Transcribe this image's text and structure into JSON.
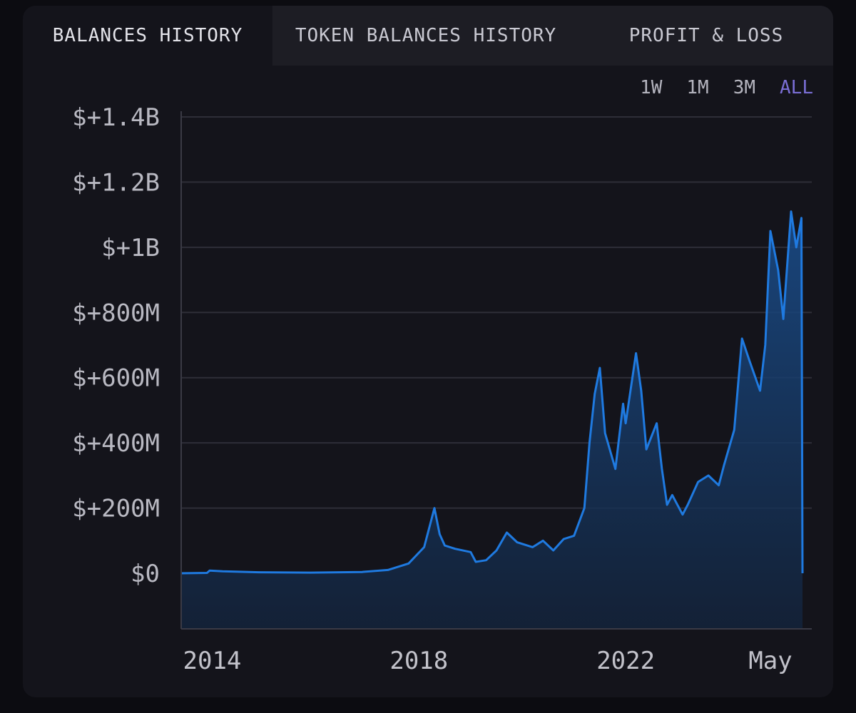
{
  "tabs": [
    {
      "label": "BALANCES HISTORY",
      "active": true
    },
    {
      "label": "TOKEN BALANCES HISTORY",
      "active": false
    },
    {
      "label": "PROFIT & LOSS",
      "active": false
    }
  ],
  "ranges": [
    {
      "label": "1W",
      "active": false
    },
    {
      "label": "1M",
      "active": false
    },
    {
      "label": "3M",
      "active": false
    },
    {
      "label": "ALL",
      "active": true
    }
  ],
  "colors": {
    "background": "#0c0c11",
    "panel": "#14141b",
    "line": "#1f7ae0",
    "active_range": "#7b6fd6"
  },
  "chart_data": {
    "type": "area",
    "title": "",
    "xlabel": "",
    "ylabel": "",
    "ylim": [
      -170000000,
      1400000000
    ],
    "y_ticks": [
      {
        "value": 1400000000,
        "label": "$+1.4B"
      },
      {
        "value": 1200000000,
        "label": "$+1.2B"
      },
      {
        "value": 1000000000,
        "label": "$+1B"
      },
      {
        "value": 800000000,
        "label": "$+800M"
      },
      {
        "value": 600000000,
        "label": "$+600M"
      },
      {
        "value": 400000000,
        "label": "$+400M"
      },
      {
        "value": 200000000,
        "label": "$+200M"
      },
      {
        "value": 0,
        "label": "$0"
      }
    ],
    "x_ticks": [
      {
        "x": 2013.6,
        "label": "2014"
      },
      {
        "x": 2017.6,
        "label": "2018"
      },
      {
        "x": 2021.6,
        "label": "2022"
      },
      {
        "x": 2024.4,
        "label": "May"
      }
    ],
    "grid": true,
    "xlim": [
      2013,
      2025.2
    ],
    "series": [
      {
        "values": [
          [
            2013.0,
            0
          ],
          [
            2013.5,
            1000000
          ],
          [
            2013.55,
            8000000
          ],
          [
            2013.8,
            6000000
          ],
          [
            2014.5,
            3000000
          ],
          [
            2015.5,
            2000000
          ],
          [
            2016.5,
            4000000
          ],
          [
            2017.0,
            10000000
          ],
          [
            2017.4,
            30000000
          ],
          [
            2017.7,
            80000000
          ],
          [
            2017.9,
            200000000
          ],
          [
            2018.0,
            120000000
          ],
          [
            2018.1,
            85000000
          ],
          [
            2018.3,
            75000000
          ],
          [
            2018.6,
            65000000
          ],
          [
            2018.7,
            35000000
          ],
          [
            2018.9,
            40000000
          ],
          [
            2019.1,
            70000000
          ],
          [
            2019.3,
            125000000
          ],
          [
            2019.5,
            95000000
          ],
          [
            2019.8,
            80000000
          ],
          [
            2020.0,
            100000000
          ],
          [
            2020.2,
            70000000
          ],
          [
            2020.4,
            105000000
          ],
          [
            2020.6,
            115000000
          ],
          [
            2020.8,
            200000000
          ],
          [
            2020.9,
            400000000
          ],
          [
            2021.0,
            550000000
          ],
          [
            2021.1,
            630000000
          ],
          [
            2021.2,
            430000000
          ],
          [
            2021.4,
            320000000
          ],
          [
            2021.55,
            520000000
          ],
          [
            2021.6,
            460000000
          ],
          [
            2021.8,
            675000000
          ],
          [
            2021.9,
            560000000
          ],
          [
            2022.0,
            380000000
          ],
          [
            2022.2,
            460000000
          ],
          [
            2022.3,
            320000000
          ],
          [
            2022.4,
            210000000
          ],
          [
            2022.5,
            240000000
          ],
          [
            2022.7,
            180000000
          ],
          [
            2022.8,
            210000000
          ],
          [
            2023.0,
            280000000
          ],
          [
            2023.2,
            300000000
          ],
          [
            2023.4,
            270000000
          ],
          [
            2023.5,
            330000000
          ],
          [
            2023.7,
            440000000
          ],
          [
            2023.85,
            720000000
          ],
          [
            2024.0,
            650000000
          ],
          [
            2024.2,
            560000000
          ],
          [
            2024.3,
            700000000
          ],
          [
            2024.4,
            1050000000
          ],
          [
            2024.55,
            930000000
          ],
          [
            2024.65,
            780000000
          ],
          [
            2024.8,
            1110000000
          ],
          [
            2024.9,
            1000000000
          ],
          [
            2025.0,
            1090000000
          ],
          [
            2025.02,
            0
          ]
        ]
      }
    ]
  }
}
